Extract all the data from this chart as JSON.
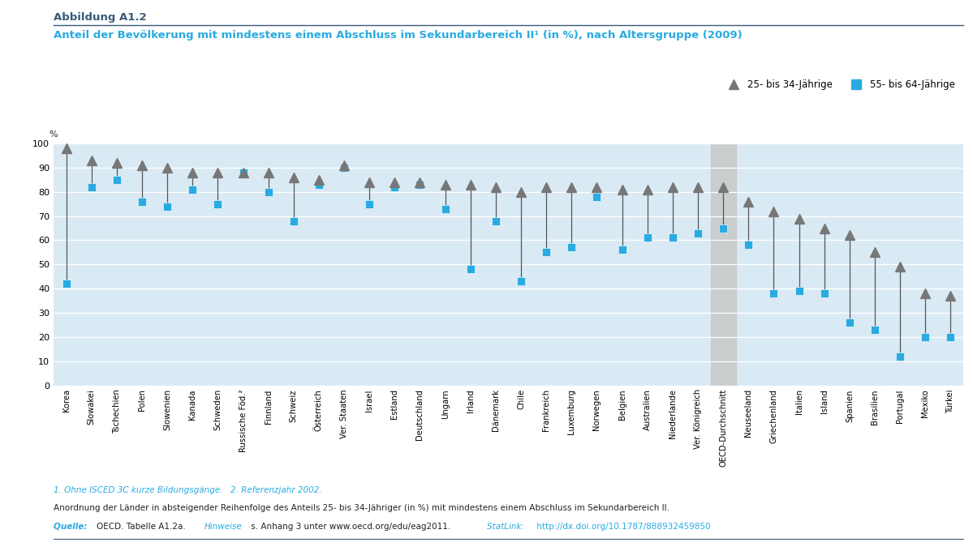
{
  "title_label": "Abbildung A1.2",
  "subtitle": "Anteil der Bevölkerung mit mindestens einem Abschluss im Sekundarbereich II¹ (in %), nach Altersgruppe (2009)",
  "ylabel": "%",
  "ylim": [
    0,
    100
  ],
  "yticks": [
    0,
    10,
    20,
    30,
    40,
    50,
    60,
    70,
    80,
    90,
    100
  ],
  "legend_25_34": "25- bis 34-Jährige",
  "legend_55_64": "55- bis 64-Jährige",
  "countries": [
    "Korea",
    "Slowakei",
    "Tschechien",
    "Polen",
    "Slowenien",
    "Kanada",
    "Schweden",
    "Russische Föd.²",
    "Finnland",
    "Schweiz",
    "Österreich",
    "Ver. Staaten",
    "Israel",
    "Estland",
    "Deutschland",
    "Ungarn",
    "Irland",
    "Dänemark",
    "Chile",
    "Frankreich",
    "Luxemburg",
    "Norwegen",
    "Belgien",
    "Australien",
    "Niederlande",
    "Ver. Königreich",
    "OECD-Durchschnitt",
    "Neuseeland",
    "Griechenland",
    "Italien",
    "Island",
    "Spanien",
    "Brasilien",
    "Portugal",
    "Mexiko",
    "Türkei"
  ],
  "values_25_34": [
    98,
    93,
    92,
    91,
    90,
    88,
    88,
    88,
    88,
    86,
    85,
    91,
    84,
    84,
    84,
    83,
    83,
    82,
    80,
    82,
    82,
    82,
    81,
    81,
    82,
    82,
    82,
    76,
    72,
    69,
    65,
    62,
    55,
    49,
    38,
    37
  ],
  "values_55_64": [
    42,
    82,
    85,
    76,
    74,
    81,
    75,
    88,
    80,
    68,
    83,
    90,
    75,
    82,
    83,
    73,
    48,
    68,
    43,
    55,
    57,
    78,
    56,
    61,
    61,
    63,
    65,
    58,
    38,
    39,
    38,
    26,
    23,
    12,
    20,
    20
  ],
  "oecd_index": 26,
  "background_color": "#daeaf5",
  "oecd_col_color": "#c8c8c8",
  "triangle_color": "#777777",
  "square_color": "#29abe2",
  "line_color": "#555555",
  "cyan_color": "#29abe2",
  "dark_color": "#3a5a7a",
  "text_color": "#222222"
}
